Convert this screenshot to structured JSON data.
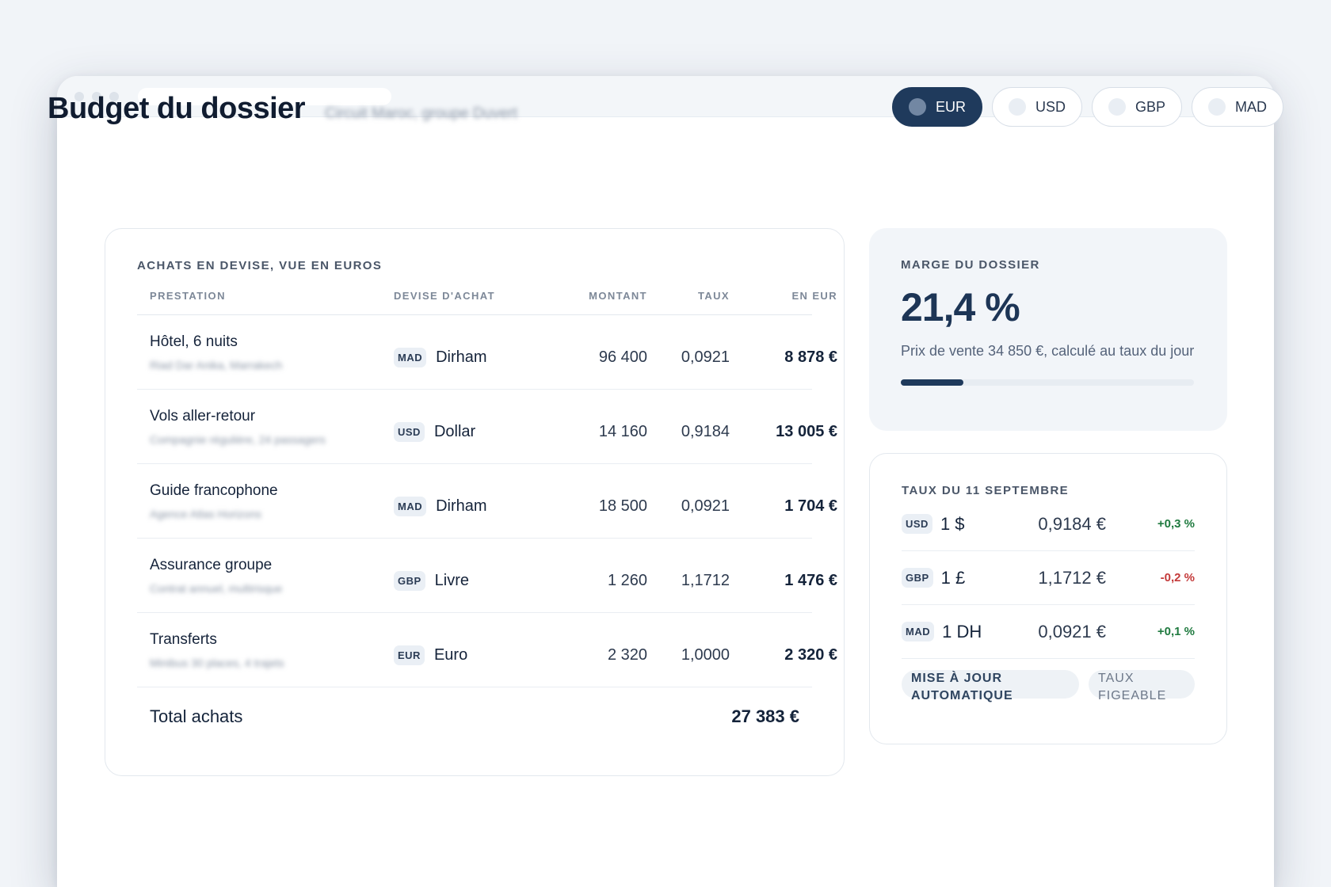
{
  "page": {
    "title": "Budget du dossier",
    "subtitle": "Circuit Maroc, groupe Duvert"
  },
  "currencies": [
    {
      "code": "EUR",
      "active": true
    },
    {
      "code": "USD",
      "active": false
    },
    {
      "code": "GBP",
      "active": false
    },
    {
      "code": "MAD",
      "active": false
    }
  ],
  "purchases": {
    "label": "ACHATS EN DEVISE, VUE EN EUROS",
    "columns": [
      "PRESTATION",
      "DEVISE D'ACHAT",
      "MONTANT",
      "TAUX",
      "EN EUR"
    ],
    "rows": [
      {
        "name": "Hôtel, 6 nuits",
        "sub": "Riad Dar Anika, Marrakech",
        "badge": "MAD",
        "currency": "Dirham",
        "amount": "96 400",
        "rate": "0,0921",
        "eur": "8 878 €"
      },
      {
        "name": "Vols aller-retour",
        "sub": "Compagnie régulière, 24 passagers",
        "badge": "USD",
        "currency": "Dollar",
        "amount": "14 160",
        "rate": "0,9184",
        "eur": "13 005 €"
      },
      {
        "name": "Guide francophone",
        "sub": "Agence Atlas Horizons",
        "badge": "MAD",
        "currency": "Dirham",
        "amount": "18 500",
        "rate": "0,0921",
        "eur": "1 704 €"
      },
      {
        "name": "Assurance groupe",
        "sub": "Contrat annuel, multirisque",
        "badge": "GBP",
        "currency": "Livre",
        "amount": "1 260",
        "rate": "1,1712",
        "eur": "1 476 €"
      },
      {
        "name": "Transferts",
        "sub": "Minibus 30 places, 4 trajets",
        "badge": "EUR",
        "currency": "Euro",
        "amount": "2 320",
        "rate": "1,0000",
        "eur": "2 320 €"
      }
    ],
    "total_label": "Total achats",
    "total_value": "27 383 €"
  },
  "margin": {
    "label": "MARGE DU DOSSIER",
    "value": "21,4 %",
    "description": "Prix de vente 34 850 €, calculé au taux du jour",
    "progress": 0.214
  },
  "rates": {
    "label": "TAUX DU 11 SEPTEMBRE",
    "rows": [
      {
        "badge": "USD",
        "unit": "1 $",
        "value": "0,9184 €",
        "delta": "+0,3 %",
        "trend": "up"
      },
      {
        "badge": "GBP",
        "unit": "1 £",
        "value": "1,1712 €",
        "delta": "-0,2 %",
        "trend": "down"
      },
      {
        "badge": "MAD",
        "unit": "1 DH",
        "value": "0,0921 €",
        "delta": "+0,1 %",
        "trend": "up"
      }
    ],
    "chips": [
      "MISE À JOUR AUTOMATIQUE",
      "TAUX FIGEABLE"
    ]
  },
  "colors": {
    "accent": "#1f3a5c",
    "positive": "#1f7a3f",
    "negative": "#c43a3a"
  }
}
